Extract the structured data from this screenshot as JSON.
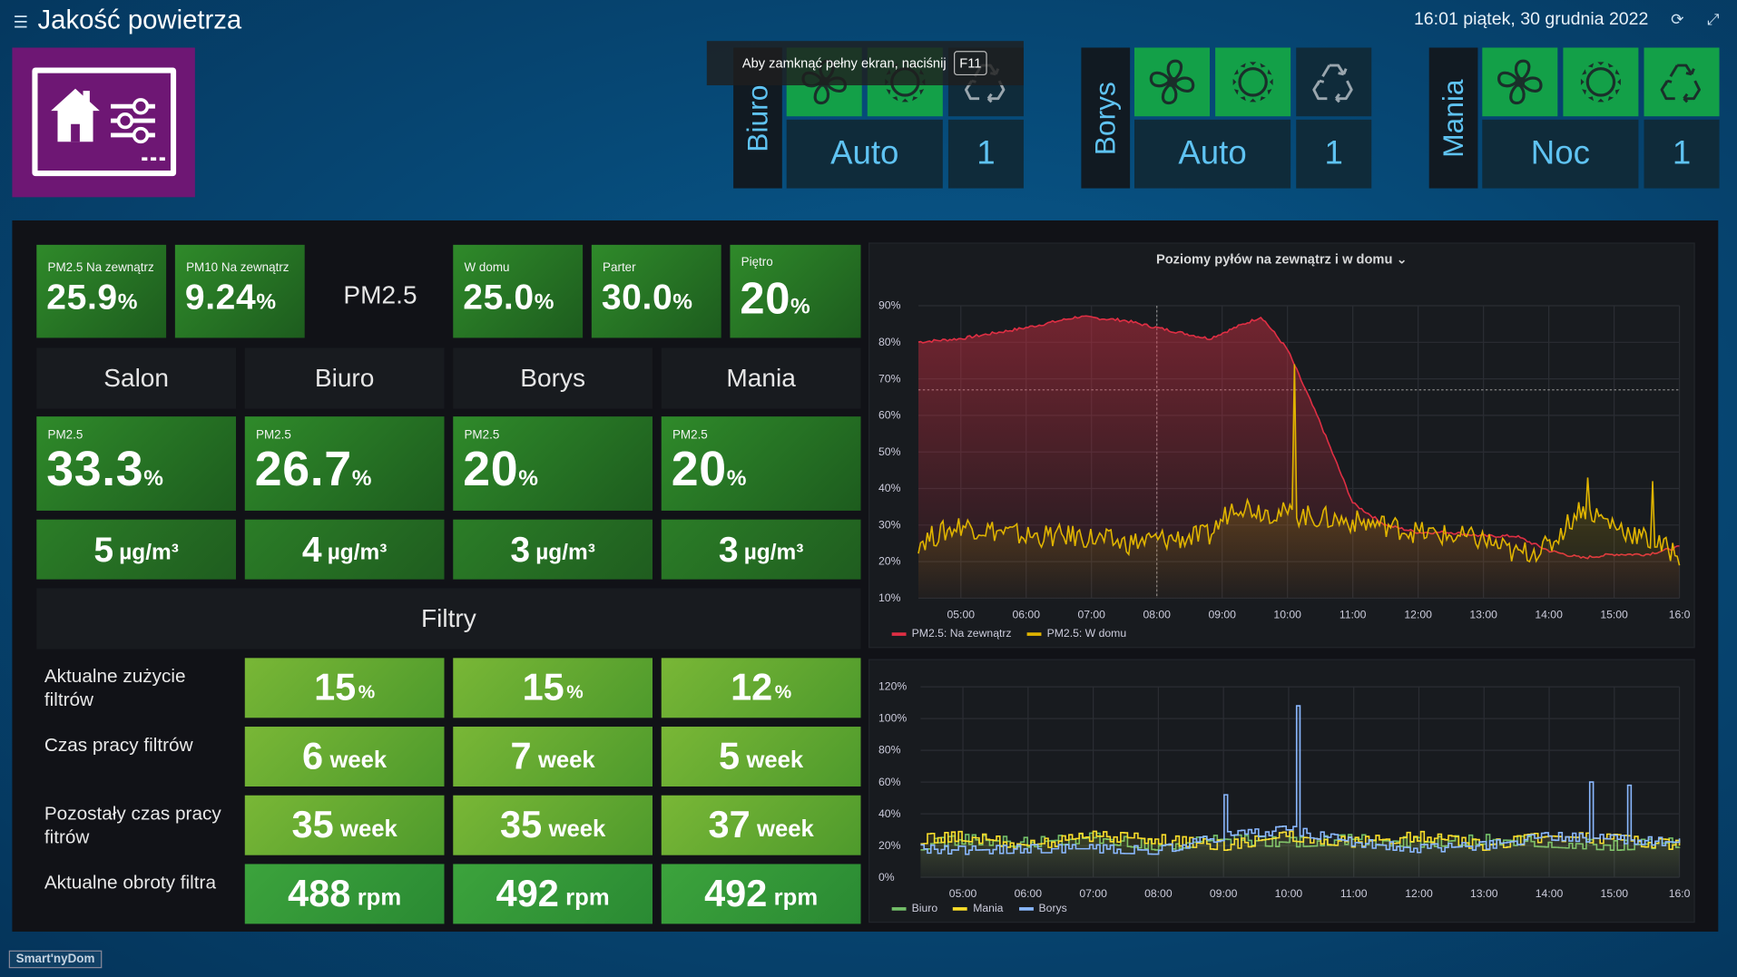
{
  "header": {
    "title": "Jakość powietrza",
    "datetime": "16:01 piątek, 30 grudnia 2022",
    "icons": [
      "hamburger-icon",
      "refresh-icon",
      "fullscreen-icon"
    ]
  },
  "toast": {
    "text": "Aby zamknąć pełny ekran, naciśnij",
    "key": "F11"
  },
  "rooms": [
    {
      "name": "Biuro",
      "mode": "Auto",
      "level": "1"
    },
    {
      "name": "Borys",
      "mode": "Auto",
      "level": "1"
    },
    {
      "name": "Mania",
      "mode": "Noc",
      "level": "1"
    }
  ],
  "summary": {
    "pm25_out_label": "PM2.5 Na zewnątrz",
    "pm25_out_value": "25.9",
    "pm25_out_unit": "%",
    "pm10_out_label": "PM10 Na zewnątrz",
    "pm10_out_value": "9.24",
    "pm10_out_unit": "%",
    "pm25_text": "PM2.5",
    "home_label": "W domu",
    "home_value": "25.0",
    "home_unit": "%",
    "parter_label": "Parter",
    "parter_value": "30.0",
    "parter_unit": "%",
    "pietro_label": "Piętro",
    "pietro_value": "20",
    "pietro_unit": "%"
  },
  "room_tiles": [
    {
      "name": "Salon",
      "pm_label": "PM2.5",
      "pm_value": "33.3",
      "pm_unit": "%",
      "ug_value": "5",
      "ug_unit": "µg/m³"
    },
    {
      "name": "Biuro",
      "pm_label": "PM2.5",
      "pm_value": "26.7",
      "pm_unit": "%",
      "ug_value": "4",
      "ug_unit": "µg/m³"
    },
    {
      "name": "Borys",
      "pm_label": "PM2.5",
      "pm_value": "20",
      "pm_unit": "%",
      "ug_value": "3",
      "ug_unit": "µg/m³"
    },
    {
      "name": "Mania",
      "pm_label": "PM2.5",
      "pm_value": "20",
      "pm_unit": "%",
      "ug_value": "3",
      "ug_unit": "µg/m³"
    }
  ],
  "filters": {
    "header": "Filtry",
    "rows": [
      {
        "label": "Aktualne zużycie filtrów",
        "cells": [
          {
            "v": "15",
            "u": "%"
          },
          {
            "v": "15",
            "u": "%"
          },
          {
            "v": "12",
            "u": "%"
          }
        ]
      },
      {
        "label": "Czas pracy filtrów",
        "cells": [
          {
            "v": "6",
            "u": "week"
          },
          {
            "v": "7",
            "u": "week"
          },
          {
            "v": "5",
            "u": "week"
          }
        ]
      },
      {
        "label": "Pozostały czas pracy fitrów",
        "cells": [
          {
            "v": "35",
            "u": "week"
          },
          {
            "v": "35",
            "u": "week"
          },
          {
            "v": "37",
            "u": "week"
          }
        ]
      },
      {
        "label": "Aktualne obroty filtra",
        "cells": [
          {
            "v": "488",
            "u": "rpm"
          },
          {
            "v": "492",
            "u": "rpm"
          },
          {
            "v": "492",
            "u": "rpm"
          }
        ]
      }
    ]
  },
  "brand": "Smart'nyDom",
  "chart_data": [
    {
      "type": "area",
      "title": "Poziomy pyłów na zewnątrz i w domu",
      "x_ticks": [
        "05:00",
        "06:00",
        "07:00",
        "08:00",
        "09:00",
        "10:00",
        "11:00",
        "12:00",
        "13:00",
        "14:00",
        "15:00",
        "16:0"
      ],
      "y_ticks": [
        "10%",
        "20%",
        "30%",
        "40%",
        "50%",
        "60%",
        "70%",
        "80%",
        "90%"
      ],
      "ylim": [
        10,
        90
      ],
      "threshold": 67,
      "x_hours": [
        4.3,
        5.0,
        6.0,
        6.8,
        7.5,
        8.0,
        8.8,
        9.2,
        9.6,
        10.0,
        10.5,
        11.0,
        11.5,
        12.0,
        12.5,
        13.0,
        13.5,
        14.0,
        14.5,
        15.0,
        15.5,
        16.0
      ],
      "series": [
        {
          "name": "PM2.5: Na zewnątrz",
          "color": "#e02f44",
          "values": [
            80,
            81,
            84,
            87,
            86,
            84,
            81,
            84,
            87,
            78,
            58,
            36,
            30,
            28,
            28,
            27,
            27,
            23,
            21,
            22,
            22,
            24
          ]
        },
        {
          "name": "PM2.5: W domu",
          "color": "#e0b400",
          "values": [
            25,
            30,
            27,
            27,
            25,
            26,
            27,
            36,
            34,
            33,
            32,
            31,
            30,
            28,
            27,
            26,
            22,
            24,
            35,
            30,
            26,
            22
          ]
        }
      ],
      "spikes": [
        {
          "x": 10.1,
          "value": 74
        },
        {
          "x": 14.6,
          "value": 43
        },
        {
          "x": 15.6,
          "value": 42
        }
      ],
      "vertical_marker_x": 8.0
    },
    {
      "type": "line",
      "title": "",
      "x_ticks": [
        "05:00",
        "06:00",
        "07:00",
        "08:00",
        "09:00",
        "10:00",
        "11:00",
        "12:00",
        "13:00",
        "14:00",
        "15:00",
        "16:0"
      ],
      "y_ticks": [
        "0%",
        "20%",
        "40%",
        "60%",
        "80%",
        "100%",
        "120%"
      ],
      "ylim": [
        0,
        120
      ],
      "x_hours": [
        4.3,
        5.0,
        6.0,
        7.0,
        8.0,
        9.0,
        10.0,
        11.0,
        12.0,
        13.0,
        14.0,
        15.0,
        16.0
      ],
      "series": [
        {
          "name": "Biuro",
          "color": "#73bf69",
          "values": [
            20,
            24,
            22,
            25,
            20,
            24,
            22,
            24,
            22,
            24,
            22,
            20,
            22
          ]
        },
        {
          "name": "Mania",
          "color": "#fade2a",
          "values": [
            24,
            26,
            20,
            26,
            24,
            20,
            26,
            22,
            26,
            20,
            26,
            24,
            20
          ]
        },
        {
          "name": "Borys",
          "color": "#8ab8ff",
          "values": [
            18,
            17,
            18,
            18,
            17,
            26,
            30,
            22,
            18,
            20,
            26,
            24,
            22
          ]
        }
      ],
      "spikes": [
        {
          "series": "Borys",
          "x": 10.1,
          "value": 108
        },
        {
          "series": "Borys",
          "x": 9.0,
          "value": 52
        },
        {
          "series": "Borys",
          "x": 14.6,
          "value": 60
        },
        {
          "series": "Borys",
          "x": 15.2,
          "value": 58
        }
      ]
    }
  ]
}
